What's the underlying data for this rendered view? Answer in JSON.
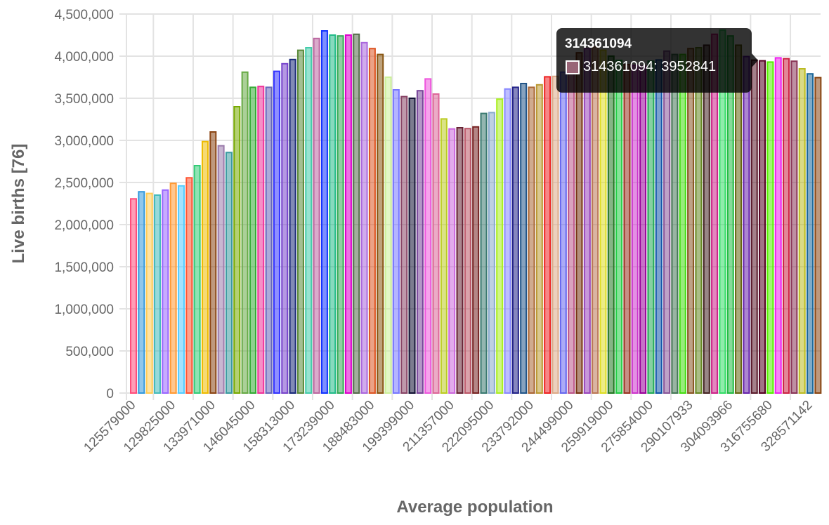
{
  "chart_data": {
    "type": "bar",
    "title": "",
    "xlabel": "Average population",
    "ylabel": "Live births [76]",
    "ylim": [
      0,
      4500000
    ],
    "y_ticks": [
      "0",
      "500,000",
      "1,000,000",
      "1,500,000",
      "2,000,000",
      "2,500,000",
      "3,000,000",
      "3,500,000",
      "4,000,000",
      "4,500,000"
    ],
    "x_tick_labels": [
      "125579000",
      "129825000",
      "133971000",
      "146045000",
      "158313000",
      "173239000",
      "188483000",
      "199399000",
      "211357000",
      "222095000",
      "233792000",
      "244499000",
      "259919000",
      "275854000",
      "290107933",
      "304093966",
      "316755680",
      "328571142"
    ],
    "grid": true,
    "legend": "none",
    "values": [
      2306000,
      2390000,
      2370000,
      2350000,
      2410000,
      2490000,
      2460000,
      2556000,
      2700000,
      2986000,
      3100000,
      2936000,
      2856000,
      3400000,
      3810000,
      3630000,
      3640000,
      3630000,
      3820000,
      3910000,
      3960000,
      4070000,
      4100000,
      4210000,
      4300000,
      4250000,
      4240000,
      4250000,
      4260000,
      4160000,
      4090000,
      4020000,
      3750000,
      3600000,
      3520000,
      3500000,
      3590000,
      3730000,
      3550000,
      3255000,
      3136000,
      3150000,
      3140000,
      3160000,
      3320000,
      3330000,
      3490000,
      3610000,
      3630000,
      3675000,
      3630000,
      3660000,
      3755000,
      3760000,
      3810000,
      3900000,
      4040000,
      4090000,
      4110000,
      4070000,
      4000000,
      3950000,
      3900000,
      3890000,
      3880000,
      3940000,
      3955000,
      4060000,
      4020000,
      4020000,
      4090000,
      4100000,
      4130000,
      4260000,
      4310000,
      4240000,
      4130000,
      3995000,
      3952841,
      3945000,
      3930000,
      3980000,
      3970000,
      3940000,
      3850000,
      3790000,
      3745000
    ],
    "colors": [
      "#ff4d7a",
      "#3399dd",
      "#ffcc55",
      "#44bbbb",
      "#9966ff",
      "#ff9933",
      "#55ccff",
      "#ff5533",
      "#33cc77",
      "#eebb00",
      "#8b4513",
      "#9b7bab",
      "#3a9aa0",
      "#77aa00",
      "#66aa44",
      "#33aa33",
      "#ee3399",
      "#6666bb",
      "#3333ff",
      "#7744cc",
      "#1a2a7a",
      "#5a8a3a",
      "#44ccaa",
      "#bb66a0",
      "#1133ff",
      "#22bb88",
      "#33aa55",
      "#dd00cc",
      "#556b4a",
      "#aa66dd",
      "#dd5522",
      "#885511",
      "#ccf099",
      "#7777ff",
      "#884466",
      "#111133",
      "#774499",
      "#ee55dd",
      "#dd6699",
      "#bbcc22",
      "#cc66dd",
      "#662233",
      "#bb5566",
      "#772222",
      "#3a7a70",
      "#88aacc",
      "#aaee22",
      "#8888ff",
      "#222288",
      "#225588",
      "#aa6633",
      "#bb9933",
      "#ee2222",
      "#ddaa88",
      "#6666ee",
      "#bb5588",
      "#773311",
      "#9944bb",
      "#bb7755",
      "#dddd22",
      "#227722",
      "#22cc44",
      "#993322",
      "#cc33cc",
      "#990099",
      "#22aa55",
      "#1155aa",
      "#885599",
      "#447755",
      "#44dd11",
      "#885522",
      "#668822",
      "#442222",
      "#cc2288",
      "#33dd66",
      "#22bb44",
      "#666611",
      "#6622aa",
      "#5a1a2a",
      "#550022",
      "#55ee00",
      "#ee22ee",
      "#cc2244",
      "#883355",
      "#bbbb22",
      "#1a6699",
      "#884411"
    ],
    "tooltip": {
      "title": "314361094",
      "body": "314361094: 3952841",
      "swatch_color": "#996677"
    }
  }
}
